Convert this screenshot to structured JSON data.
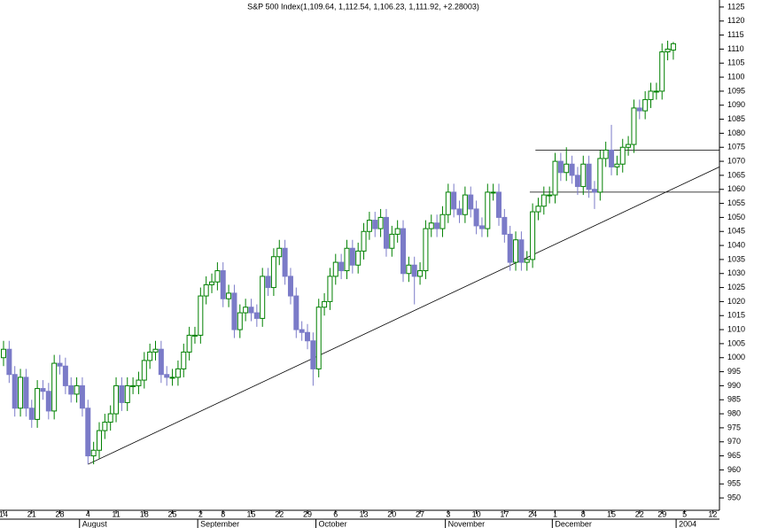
{
  "chart_data": {
    "type": "candlestick",
    "title": "S&P 500 Index(1,109.64, 1,112.54, 1,106.23, 1,111.92, +2.28003)",
    "up_color": "#008000",
    "down_color": "#7b7bc8",
    "open": [
      1000,
      1003,
      994,
      982,
      993,
      982,
      978,
      989,
      988,
      981,
      998,
      997,
      990,
      987,
      990,
      982,
      965,
      967,
      974,
      977,
      980,
      990,
      984,
      990,
      990,
      992,
      999,
      1002,
      1003,
      994,
      993,
      993,
      996,
      1002,
      1008,
      1008,
      1022,
      1026,
      1027,
      1031,
      1021,
      1023,
      1010,
      1016,
      1018,
      1016,
      1014,
      1029,
      1025,
      1036,
      1039,
      1029,
      1022,
      1010,
      1009,
      1006,
      996,
      1018,
      1020,
      1029,
      1034,
      1031,
      1039,
      1033,
      1038,
      1045,
      1049,
      1046,
      1050,
      1039,
      1044,
      1046,
      1030,
      1033,
      1029,
      1031,
      1046,
      1048,
      1046,
      1051,
      1059,
      1053,
      1051,
      1058,
      1053,
      1047,
      1046,
      1059,
      1059,
      1050,
      1044,
      1034,
      1042,
      1034,
      1035,
      1052,
      1054,
      1058,
      1058,
      1070,
      1066,
      1069,
      1065,
      1061,
      1069,
      1060,
      1059,
      1071,
      1074,
      1068,
      1069,
      1075,
      1076,
      1089,
      1088,
      1092,
      1095,
      1095,
      1109,
      1109.64
    ],
    "high": [
      1006,
      1006,
      997,
      996,
      996,
      985,
      992,
      992,
      991,
      1001,
      1001,
      1000,
      993,
      993,
      993,
      985,
      970,
      977,
      980,
      983,
      993,
      993,
      993,
      993,
      995,
      1002,
      1005,
      1006,
      1006,
      997,
      996,
      999,
      1005,
      1011,
      1011,
      1025,
      1029,
      1030,
      1034,
      1034,
      1026,
      1026,
      1019,
      1021,
      1021,
      1019,
      1032,
      1032,
      1039,
      1042,
      1042,
      1032,
      1025,
      1013,
      1012,
      1009,
      1021,
      1023,
      1032,
      1037,
      1037,
      1042,
      1042,
      1041,
      1048,
      1052,
      1052,
      1053,
      1053,
      1047,
      1049,
      1049,
      1036,
      1036,
      1034,
      1049,
      1051,
      1051,
      1054,
      1062,
      1062,
      1056,
      1061,
      1061,
      1056,
      1050,
      1062,
      1062,
      1062,
      1053,
      1047,
      1045,
      1045,
      1038,
      1055,
      1057,
      1061,
      1061,
      1073,
      1073,
      1075,
      1072,
      1068,
      1072,
      1072,
      1063,
      1074,
      1077,
      1083,
      1072,
      1078,
      1079,
      1092,
      1092,
      1095,
      1098,
      1098,
      1112,
      1113,
      1112.54
    ],
    "low": [
      997,
      991,
      979,
      979,
      979,
      975,
      975,
      985,
      978,
      978,
      994,
      987,
      984,
      984,
      979,
      962,
      962,
      964,
      971,
      974,
      977,
      981,
      981,
      987,
      987,
      989,
      996,
      999,
      991,
      990,
      990,
      990,
      993,
      999,
      1005,
      1005,
      1019,
      1023,
      1024,
      1018,
      1018,
      1007,
      1007,
      1013,
      1013,
      1011,
      1011,
      1022,
      1022,
      1033,
      1026,
      1019,
      1007,
      1006,
      1003,
      990,
      993,
      1015,
      1017,
      1026,
      1028,
      1028,
      1030,
      1030,
      1035,
      1042,
      1043,
      1043,
      1036,
      1036,
      1041,
      1027,
      1027,
      1019,
      1026,
      1028,
      1043,
      1043,
      1043,
      1048,
      1050,
      1048,
      1048,
      1050,
      1044,
      1043,
      1043,
      1056,
      1047,
      1041,
      1031,
      1031,
      1031,
      1031,
      1032,
      1049,
      1051,
      1055,
      1055,
      1063,
      1063,
      1062,
      1058,
      1058,
      1057,
      1053,
      1056,
      1068,
      1065,
      1065,
      1066,
      1072,
      1073,
      1085,
      1085,
      1089,
      1092,
      1092,
      1106,
      1106.23
    ],
    "close": [
      1003,
      994,
      982,
      993,
      982,
      978,
      989,
      988,
      981,
      998,
      997,
      990,
      987,
      990,
      982,
      965,
      967,
      974,
      977,
      980,
      990,
      984,
      990,
      990,
      992,
      999,
      1002,
      1003,
      994,
      993,
      993,
      996,
      1002,
      1008,
      1008,
      1022,
      1026,
      1027,
      1031,
      1021,
      1023,
      1010,
      1016,
      1018,
      1016,
      1014,
      1029,
      1025,
      1036,
      1039,
      1029,
      1022,
      1010,
      1009,
      1006,
      996,
      1018,
      1020,
      1029,
      1034,
      1031,
      1039,
      1033,
      1038,
      1045,
      1049,
      1046,
      1050,
      1039,
      1044,
      1046,
      1030,
      1033,
      1029,
      1031,
      1046,
      1048,
      1046,
      1051,
      1059,
      1053,
      1051,
      1058,
      1053,
      1047,
      1046,
      1059,
      1059,
      1050,
      1044,
      1034,
      1042,
      1034,
      1035,
      1052,
      1054,
      1058,
      1058,
      1070,
      1066,
      1069,
      1065,
      1061,
      1069,
      1060,
      1059,
      1071,
      1074,
      1068,
      1069,
      1075,
      1076,
      1089,
      1088,
      1092,
      1095,
      1095,
      1109,
      1110,
      1111.92
    ],
    "lines": [
      {
        "x": [
          15,
          127.2
        ],
        "y": [
          962,
          1068
        ]
      },
      {
        "x": [
          94.5,
          127.2
        ],
        "y": [
          1074,
          1074
        ]
      },
      {
        "x": [
          93.5,
          127.2
        ],
        "y": [
          1059,
          1059
        ]
      }
    ],
    "xlim": [
      -0.63,
      127.2
    ],
    "xticks": [
      {
        "value": 0,
        "label": "14"
      },
      {
        "value": 5,
        "label": "21"
      },
      {
        "value": 10,
        "label": "28"
      },
      {
        "value": 15,
        "label": "4"
      },
      {
        "value": 20,
        "label": "11"
      },
      {
        "value": 25,
        "label": "18"
      },
      {
        "value": 30,
        "label": "25"
      },
      {
        "value": 35,
        "label": "2"
      },
      {
        "value": 39,
        "label": "8"
      },
      {
        "value": 44,
        "label": "15"
      },
      {
        "value": 49,
        "label": "22"
      },
      {
        "value": 54,
        "label": "29"
      },
      {
        "value": 59,
        "label": "6"
      },
      {
        "value": 64,
        "label": "13"
      },
      {
        "value": 69,
        "label": "20"
      },
      {
        "value": 74,
        "label": "27"
      },
      {
        "value": 79,
        "label": "3"
      },
      {
        "value": 84,
        "label": "10"
      },
      {
        "value": 89,
        "label": "17"
      },
      {
        "value": 94,
        "label": "24"
      },
      {
        "value": 98,
        "label": "1"
      },
      {
        "value": 103,
        "label": "8"
      },
      {
        "value": 108,
        "label": "15"
      },
      {
        "value": 113,
        "label": "22"
      },
      {
        "value": 117,
        "label": "29"
      },
      {
        "value": 121,
        "label": "5"
      },
      {
        "value": 126,
        "label": "12"
      }
    ],
    "month_ticks": [
      {
        "value": 14,
        "label": "August"
      },
      {
        "value": 35,
        "label": "September"
      },
      {
        "value": 56,
        "label": "October"
      },
      {
        "value": 79,
        "label": "November"
      },
      {
        "value": 98,
        "label": "December"
      },
      {
        "value": 120,
        "label": "2004"
      }
    ],
    "ylim": [
      945.6,
      1127.5
    ],
    "yticks": [
      950,
      955,
      960,
      965,
      970,
      975,
      980,
      985,
      990,
      995,
      1000,
      1005,
      1010,
      1015,
      1020,
      1025,
      1030,
      1035,
      1040,
      1045,
      1050,
      1055,
      1060,
      1065,
      1070,
      1075,
      1080,
      1085,
      1090,
      1095,
      1100,
      1105,
      1110,
      1115,
      1120,
      1125
    ]
  }
}
